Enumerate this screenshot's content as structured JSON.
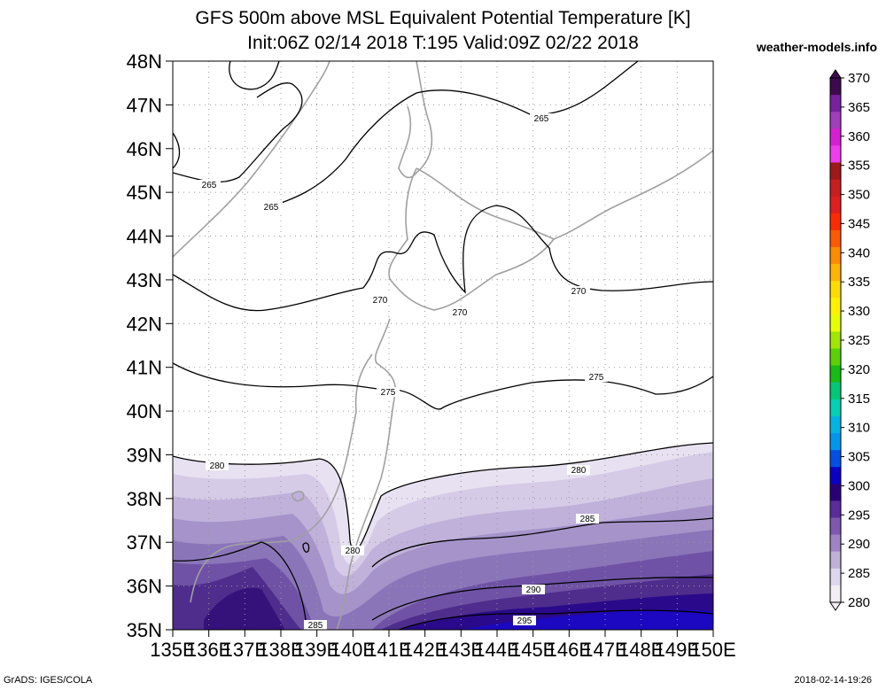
{
  "title": {
    "line1": "GFS 500m above MSL Equivalent Potential Temperature [K]",
    "line2": "Init:06Z 02/14 2018 T:195 Valid:09Z 02/22 2018"
  },
  "site": "weather-models.info",
  "footer": {
    "left": "GrADS: IGES/COLA",
    "right": "2018-02-14-19:26"
  },
  "axes": {
    "lat_labels": [
      "48N",
      "47N",
      "46N",
      "45N",
      "44N",
      "43N",
      "42N",
      "41N",
      "40N",
      "39N",
      "38N",
      "37N",
      "36N",
      "35N"
    ],
    "lon_labels": [
      "135E",
      "136E",
      "137E",
      "138E",
      "139E",
      "140E",
      "141E",
      "142E",
      "143E",
      "144E",
      "145E",
      "146E",
      "147E",
      "148E",
      "149E",
      "150E"
    ],
    "lat_range": [
      35,
      48
    ],
    "lon_range": [
      135,
      150
    ]
  },
  "colorbar": {
    "labels": [
      "370",
      "365",
      "360",
      "355",
      "350",
      "345",
      "340",
      "335",
      "330",
      "325",
      "320",
      "315",
      "310",
      "305",
      "300",
      "295",
      "290",
      "285",
      "280"
    ],
    "colors": [
      "#3d0a4e",
      "#7b1fa2",
      "#a23dbd",
      "#d81ed4",
      "#f03cf0",
      "#a01818",
      "#c81e1e",
      "#e11e1e",
      "#ff2a00",
      "#ff5a00",
      "#ff8c00",
      "#ffb400",
      "#ffdc00",
      "#fff200",
      "#e6ff00",
      "#a0e600",
      "#5ad200",
      "#14be14",
      "#00c878",
      "#00d2b4",
      "#00b4e6",
      "#0096f0",
      "#0050e6",
      "#0a00c8",
      "#2a007a",
      "#5a2c9c",
      "#7e58b0",
      "#9e84c4",
      "#c0b0d8",
      "#ded6ec",
      "#f2eef8"
    ]
  },
  "contours": {
    "labels": [
      "265",
      "265",
      "265",
      "270",
      "270",
      "270",
      "275",
      "275",
      "280",
      "280",
      "280",
      "285",
      "285",
      "290",
      "295"
    ]
  }
}
